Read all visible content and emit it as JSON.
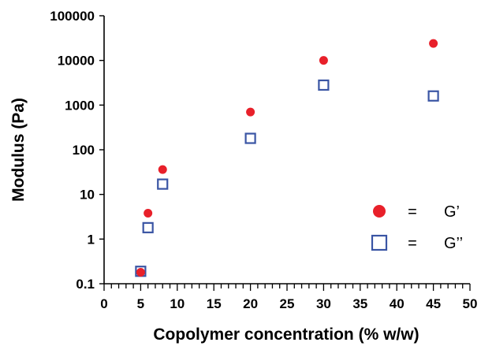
{
  "chart_data": {
    "type": "scatter",
    "title": "",
    "xlabel": "Copolymer concentration (% w/w)",
    "ylabel": "Modulus (Pa)",
    "xlim": [
      0,
      50
    ],
    "ylim": [
      0.1,
      100000
    ],
    "yscale": "log",
    "grid": false,
    "legend_position": "right",
    "x_ticks": [
      "0",
      "5",
      "10",
      "15",
      "20",
      "25",
      "30",
      "35",
      "40",
      "45",
      "50"
    ],
    "y_ticks": [
      "0.1",
      "1",
      "10",
      "100",
      "1000",
      "10000",
      "100000"
    ],
    "series": [
      {
        "name": "G’",
        "legend_label": "=",
        "marker": "filled-circle",
        "color": "#e8202a",
        "x": [
          5,
          6,
          8,
          20,
          30,
          45
        ],
        "y": [
          0.18,
          3.8,
          36,
          700,
          10000,
          24000
        ]
      },
      {
        "name": "G’’",
        "legend_label": "=",
        "marker": "open-square",
        "color": "#3a55a4",
        "x": [
          5,
          6,
          8,
          20,
          30,
          45
        ],
        "y": [
          0.19,
          1.8,
          17,
          180,
          2800,
          1600
        ]
      }
    ]
  }
}
